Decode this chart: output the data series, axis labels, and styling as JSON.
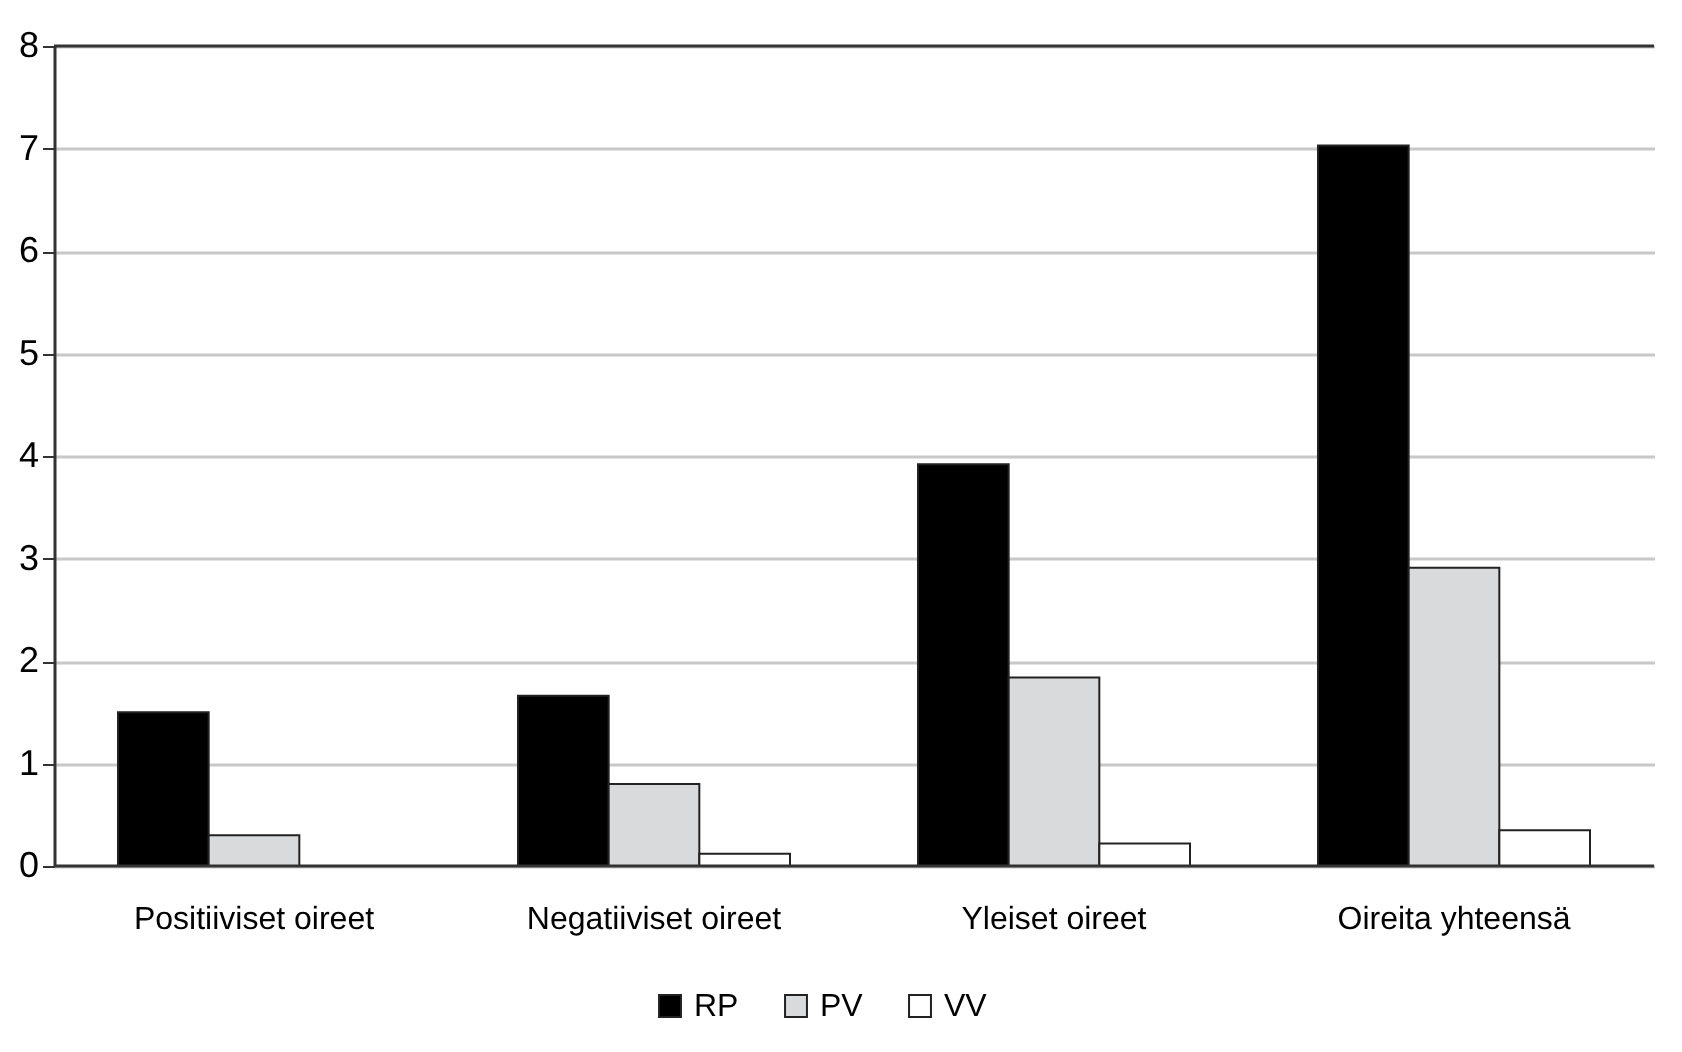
{
  "chart_data": {
    "type": "bar",
    "categories": [
      "Positiiviset oireet",
      "Negatiiviset oireet",
      "Yleiset oireet",
      "Oireita yhteensä"
    ],
    "series": [
      {
        "name": "RP",
        "color": "#000000",
        "values": [
          1.5,
          1.66,
          3.92,
          7.03
        ]
      },
      {
        "name": "PV",
        "color": "#d9dadc",
        "values": [
          0.3,
          0.8,
          1.84,
          2.91
        ]
      },
      {
        "name": "VV",
        "color": "#ffffff",
        "values": [
          null,
          0.12,
          0.22,
          0.35
        ]
      }
    ],
    "ylim": [
      0,
      8
    ],
    "yticks": [
      0,
      1,
      2,
      3,
      4,
      5,
      6,
      7,
      8
    ],
    "grid": "y",
    "legend": "bottom"
  }
}
